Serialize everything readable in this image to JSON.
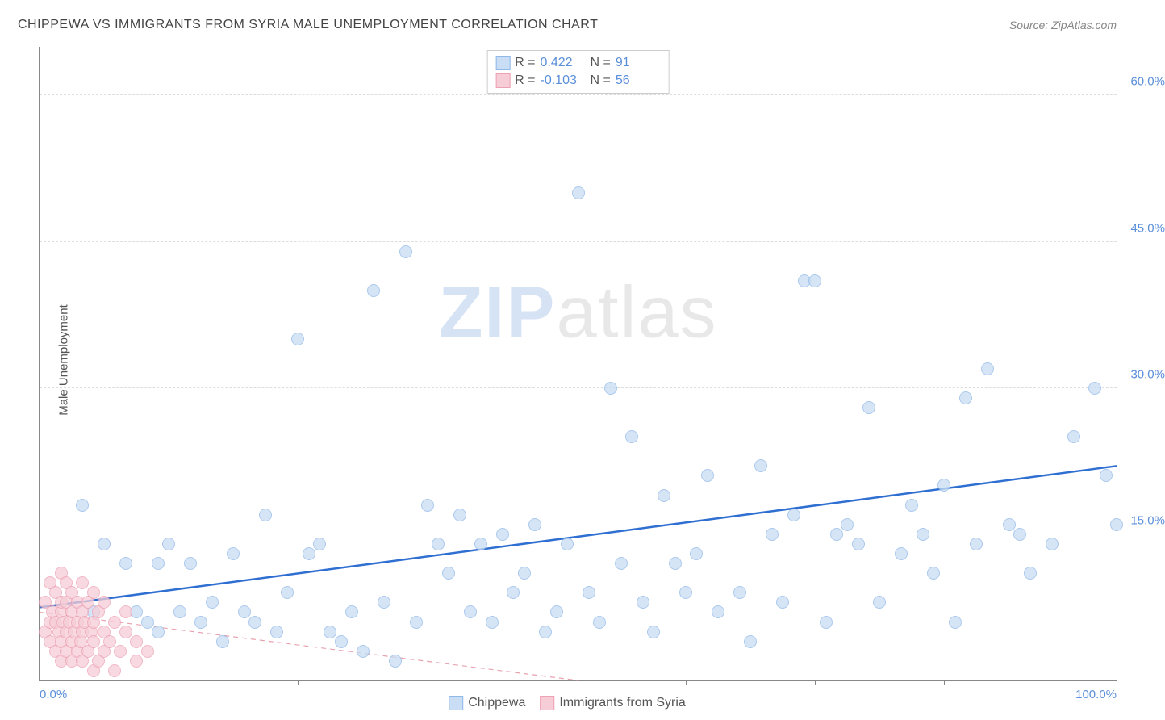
{
  "title": "CHIPPEWA VS IMMIGRANTS FROM SYRIA MALE UNEMPLOYMENT CORRELATION CHART",
  "source": "Source: ZipAtlas.com",
  "ylabel": "Male Unemployment",
  "watermark": {
    "part1": "ZIP",
    "part2": "atlas"
  },
  "chart": {
    "type": "scatter",
    "xlim": [
      0,
      100
    ],
    "ylim": [
      0,
      65
    ],
    "yticks": [
      {
        "value": 15,
        "label": "15.0%"
      },
      {
        "value": 30,
        "label": "30.0%"
      },
      {
        "value": 45,
        "label": "45.0%"
      },
      {
        "value": 60,
        "label": "60.0%"
      }
    ],
    "xticks": [
      {
        "value": 0,
        "label": "0.0%"
      },
      {
        "value": 12
      },
      {
        "value": 24
      },
      {
        "value": 36
      },
      {
        "value": 48
      },
      {
        "value": 60
      },
      {
        "value": 72
      },
      {
        "value": 84
      },
      {
        "value": 100,
        "label": "100.0%"
      }
    ],
    "background_color": "#ffffff",
    "grid_color": "#dddddd",
    "series": [
      {
        "name": "Chippewa",
        "color_fill": "#c9ddf4",
        "color_stroke": "#8fb8e8",
        "marker_radius": 8,
        "fill_opacity": 0.75,
        "R": "0.422",
        "N": "91",
        "trend": {
          "x1": 0,
          "y1": 7.5,
          "x2": 100,
          "y2": 22,
          "color": "#2f6fd1",
          "width": 2.5,
          "dash": "none"
        },
        "points": [
          [
            4,
            18
          ],
          [
            5,
            7
          ],
          [
            6,
            14
          ],
          [
            8,
            12
          ],
          [
            9,
            7
          ],
          [
            10,
            6
          ],
          [
            11,
            5
          ],
          [
            11,
            12
          ],
          [
            12,
            14
          ],
          [
            13,
            7
          ],
          [
            14,
            12
          ],
          [
            15,
            6
          ],
          [
            16,
            8
          ],
          [
            17,
            4
          ],
          [
            18,
            13
          ],
          [
            19,
            7
          ],
          [
            20,
            6
          ],
          [
            21,
            17
          ],
          [
            22,
            5
          ],
          [
            23,
            9
          ],
          [
            24,
            35
          ],
          [
            25,
            13
          ],
          [
            26,
            14
          ],
          [
            27,
            5
          ],
          [
            28,
            4
          ],
          [
            29,
            7
          ],
          [
            30,
            3
          ],
          [
            31,
            40
          ],
          [
            32,
            8
          ],
          [
            33,
            2
          ],
          [
            34,
            44
          ],
          [
            35,
            6
          ],
          [
            36,
            18
          ],
          [
            37,
            14
          ],
          [
            38,
            11
          ],
          [
            39,
            17
          ],
          [
            40,
            7
          ],
          [
            41,
            14
          ],
          [
            42,
            6
          ],
          [
            43,
            15
          ],
          [
            44,
            9
          ],
          [
            45,
            11
          ],
          [
            46,
            16
          ],
          [
            47,
            5
          ],
          [
            48,
            7
          ],
          [
            49,
            14
          ],
          [
            50,
            50
          ],
          [
            51,
            9
          ],
          [
            52,
            6
          ],
          [
            53,
            30
          ],
          [
            54,
            12
          ],
          [
            55,
            25
          ],
          [
            56,
            8
          ],
          [
            57,
            5
          ],
          [
            58,
            19
          ],
          [
            59,
            12
          ],
          [
            60,
            9
          ],
          [
            61,
            13
          ],
          [
            62,
            21
          ],
          [
            63,
            7
          ],
          [
            65,
            9
          ],
          [
            66,
            4
          ],
          [
            67,
            22
          ],
          [
            68,
            15
          ],
          [
            69,
            8
          ],
          [
            70,
            17
          ],
          [
            71,
            41
          ],
          [
            72,
            41
          ],
          [
            73,
            6
          ],
          [
            74,
            15
          ],
          [
            75,
            16
          ],
          [
            76,
            14
          ],
          [
            77,
            28
          ],
          [
            78,
            8
          ],
          [
            80,
            13
          ],
          [
            81,
            18
          ],
          [
            82,
            15
          ],
          [
            83,
            11
          ],
          [
            84,
            20
          ],
          [
            85,
            6
          ],
          [
            86,
            29
          ],
          [
            87,
            14
          ],
          [
            88,
            32
          ],
          [
            90,
            16
          ],
          [
            91,
            15
          ],
          [
            92,
            11
          ],
          [
            94,
            14
          ],
          [
            96,
            25
          ],
          [
            98,
            30
          ],
          [
            99,
            21
          ],
          [
            100,
            16
          ]
        ]
      },
      {
        "name": "Immigrants from Syria",
        "color_fill": "#f6cdd7",
        "color_stroke": "#eda1b3",
        "marker_radius": 8,
        "fill_opacity": 0.75,
        "R": "-0.103",
        "N": "56",
        "trend": {
          "x1": 0,
          "y1": 7,
          "x2": 50,
          "y2": 0,
          "color": "#e8a3b0",
          "width": 1.2,
          "dash": "6,5"
        },
        "points": [
          [
            0.5,
            5
          ],
          [
            0.5,
            8
          ],
          [
            1,
            4
          ],
          [
            1,
            6
          ],
          [
            1,
            10
          ],
          [
            1.2,
            7
          ],
          [
            1.5,
            3
          ],
          [
            1.5,
            6
          ],
          [
            1.5,
            9
          ],
          [
            1.8,
            5
          ],
          [
            2,
            2
          ],
          [
            2,
            4
          ],
          [
            2,
            7
          ],
          [
            2,
            8
          ],
          [
            2,
            11
          ],
          [
            2.2,
            6
          ],
          [
            2.5,
            3
          ],
          [
            2.5,
            5
          ],
          [
            2.5,
            8
          ],
          [
            2.5,
            10
          ],
          [
            2.8,
            6
          ],
          [
            3,
            2
          ],
          [
            3,
            4
          ],
          [
            3,
            7
          ],
          [
            3,
            9
          ],
          [
            3.2,
            5
          ],
          [
            3.5,
            3
          ],
          [
            3.5,
            6
          ],
          [
            3.5,
            8
          ],
          [
            3.8,
            4
          ],
          [
            4,
            2
          ],
          [
            4,
            5
          ],
          [
            4,
            7
          ],
          [
            4,
            10
          ],
          [
            4.2,
            6
          ],
          [
            4.5,
            3
          ],
          [
            4.5,
            8
          ],
          [
            4.8,
            5
          ],
          [
            5,
            1
          ],
          [
            5,
            4
          ],
          [
            5,
            6
          ],
          [
            5,
            9
          ],
          [
            5.5,
            2
          ],
          [
            5.5,
            7
          ],
          [
            6,
            3
          ],
          [
            6,
            5
          ],
          [
            6,
            8
          ],
          [
            6.5,
            4
          ],
          [
            7,
            1
          ],
          [
            7,
            6
          ],
          [
            7.5,
            3
          ],
          [
            8,
            5
          ],
          [
            8,
            7
          ],
          [
            9,
            2
          ],
          [
            9,
            4
          ],
          [
            10,
            3
          ]
        ]
      }
    ],
    "legend_top": [
      {
        "swatch_fill": "#c9ddf4",
        "swatch_stroke": "#8fb8e8",
        "R": "0.422",
        "N": "91",
        "value_color": "#5b8fd9"
      },
      {
        "swatch_fill": "#f6cdd7",
        "swatch_stroke": "#eda1b3",
        "R": "-0.103",
        "N": "56",
        "value_color": "#5b8fd9"
      }
    ],
    "legend_bottom": [
      {
        "swatch_fill": "#c9ddf4",
        "swatch_stroke": "#8fb8e8",
        "label": "Chippewa"
      },
      {
        "swatch_fill": "#f6cdd7",
        "swatch_stroke": "#eda1b3",
        "label": "Immigrants from Syria"
      }
    ]
  }
}
